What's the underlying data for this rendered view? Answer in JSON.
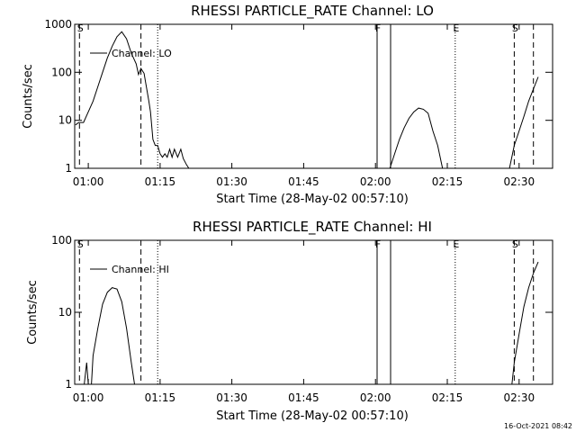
{
  "footer_timestamp": "16-Oct-2021 08:42",
  "chart_data": [
    {
      "type": "line",
      "title": "RHESSI PARTICLE_RATE Channel: LO",
      "xlabel": "Start Time (28-May-02 00:57:10)",
      "ylabel": "Counts/sec",
      "yscale": "log",
      "ylim": [
        1,
        1000
      ],
      "xlim": [
        "00:57:10",
        "02:37:00"
      ],
      "xticks": [
        "01:00",
        "01:15",
        "01:30",
        "01:45",
        "02:00",
        "02:15",
        "02:30"
      ],
      "yticks": [
        "1",
        "10",
        "100",
        "1000"
      ],
      "legend": "Channel: LO",
      "grid": false,
      "markers": [
        {
          "time": "00:58:10",
          "style": "dashed",
          "label": "S"
        },
        {
          "time": "01:11:00",
          "style": "dashed",
          "label": ""
        },
        {
          "time": "01:14:30",
          "style": "dotted",
          "label": ""
        },
        {
          "time": "02:00:20",
          "style": "solid",
          "label": "F"
        },
        {
          "time": "02:03:10",
          "style": "solid",
          "label": ""
        },
        {
          "time": "02:16:40",
          "style": "dotted",
          "label": "E"
        },
        {
          "time": "02:29:00",
          "style": "dashed",
          "label": "S"
        },
        {
          "time": "02:33:00",
          "style": "dashed",
          "label": ""
        }
      ],
      "series": [
        {
          "name": "Channel: LO",
          "segments": [
            [
              [
                "00:57:20",
                8
              ],
              [
                "00:58:00",
                9
              ],
              [
                "00:59:00",
                9
              ],
              [
                "01:00:00",
                15
              ],
              [
                "01:01:00",
                25
              ],
              [
                "01:02:00",
                50
              ],
              [
                "01:03:00",
                100
              ],
              [
                "01:04:00",
                200
              ],
              [
                "01:05:00",
                350
              ],
              [
                "01:06:00",
                550
              ],
              [
                "01:07:00",
                700
              ],
              [
                "01:08:00",
                500
              ],
              [
                "01:09:00",
                250
              ],
              [
                "01:10:00",
                150
              ],
              [
                "01:10:30",
                90
              ],
              [
                "01:11:00",
                120
              ],
              [
                "01:11:40",
                95
              ],
              [
                "01:12:00",
                60
              ],
              [
                "01:12:40",
                25
              ],
              [
                "01:13:00",
                15
              ],
              [
                "01:13:30",
                4
              ],
              [
                "01:14:00",
                3
              ],
              [
                "01:14:30",
                3
              ],
              [
                "01:15:00",
                2
              ],
              [
                "01:15:30",
                1.7
              ],
              [
                "01:16:00",
                2
              ],
              [
                "01:16:30",
                1.7
              ],
              [
                "01:17:00",
                2.5
              ],
              [
                "01:17:30",
                1.7
              ],
              [
                "01:18:00",
                2.5
              ],
              [
                "01:18:40",
                1.7
              ],
              [
                "01:19:20",
                2.5
              ],
              [
                "01:19:50",
                1.6
              ],
              [
                "01:20:30",
                1.2
              ],
              [
                "01:21:00",
                1
              ]
            ],
            [
              [
                "02:03:00",
                1
              ],
              [
                "02:04:00",
                2
              ],
              [
                "02:05:00",
                4
              ],
              [
                "02:06:00",
                7
              ],
              [
                "02:07:00",
                11
              ],
              [
                "02:08:00",
                15
              ],
              [
                "02:09:00",
                18
              ],
              [
                "02:10:00",
                17
              ],
              [
                "02:11:00",
                14
              ],
              [
                "02:12:00",
                6
              ],
              [
                "02:13:00",
                3
              ],
              [
                "02:14:00",
                1
              ]
            ],
            [
              [
                "02:28:00",
                1
              ],
              [
                "02:29:00",
                3
              ],
              [
                "02:30:00",
                6
              ],
              [
                "02:31:00",
                12
              ],
              [
                "02:32:00",
                25
              ],
              [
                "02:33:00",
                45
              ],
              [
                "02:34:00",
                80
              ]
            ]
          ]
        }
      ]
    },
    {
      "type": "line",
      "title": "RHESSI PARTICLE_RATE Channel: HI",
      "xlabel": "Start Time (28-May-02 00:57:10)",
      "ylabel": "Counts/sec",
      "yscale": "log",
      "ylim": [
        1,
        100
      ],
      "xlim": [
        "00:57:10",
        "02:37:00"
      ],
      "xticks": [
        "01:00",
        "01:15",
        "01:30",
        "01:45",
        "02:00",
        "02:15",
        "02:30"
      ],
      "yticks": [
        "1",
        "10",
        "100"
      ],
      "legend": "Channel: HI",
      "grid": false,
      "markers": [
        {
          "time": "00:58:10",
          "style": "dashed",
          "label": "S"
        },
        {
          "time": "01:11:00",
          "style": "dashed",
          "label": ""
        },
        {
          "time": "01:14:30",
          "style": "dotted",
          "label": ""
        },
        {
          "time": "02:00:20",
          "style": "solid",
          "label": "F"
        },
        {
          "time": "02:03:10",
          "style": "solid",
          "label": ""
        },
        {
          "time": "02:16:40",
          "style": "dotted",
          "label": "E"
        },
        {
          "time": "02:29:00",
          "style": "dashed",
          "label": "S"
        },
        {
          "time": "02:33:00",
          "style": "dashed",
          "label": ""
        }
      ],
      "series": [
        {
          "name": "Channel: HI",
          "segments": [
            [
              [
                "00:59:10",
                1
              ],
              [
                "00:59:40",
                2
              ],
              [
                "01:00:00",
                1
              ]
            ],
            [
              [
                "01:00:40",
                1
              ],
              [
                "01:01:00",
                2.5
              ],
              [
                "01:02:00",
                6
              ],
              [
                "01:03:00",
                13
              ],
              [
                "01:04:00",
                19
              ],
              [
                "01:05:00",
                22
              ],
              [
                "01:06:00",
                21
              ],
              [
                "01:07:00",
                14
              ],
              [
                "01:08:00",
                6
              ],
              [
                "01:09:00",
                2
              ],
              [
                "01:09:40",
                1
              ]
            ],
            [
              [
                "02:28:30",
                1
              ],
              [
                "02:29:00",
                2
              ],
              [
                "02:30:00",
                5
              ],
              [
                "02:31:00",
                12
              ],
              [
                "02:32:00",
                22
              ],
              [
                "02:33:00",
                35
              ],
              [
                "02:34:00",
                50
              ]
            ]
          ]
        }
      ]
    }
  ]
}
